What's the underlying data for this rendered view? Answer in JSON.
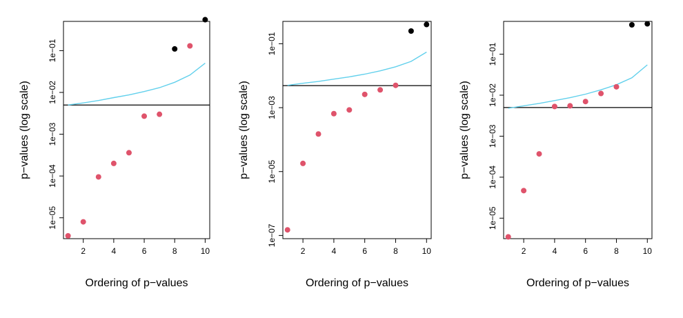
{
  "chart_data": [
    {
      "type": "scatter",
      "title": "",
      "xlabel": "Ordering of p−values",
      "ylabel": "p−values (log scale)",
      "xlim": [
        0.7,
        10.3
      ],
      "ylim_log10": [
        -5.5,
        -0.3
      ],
      "log_y": true,
      "x_ticks": [
        2,
        4,
        6,
        8,
        10
      ],
      "y_ticks": [
        {
          "value": 1e-05,
          "label": "1e−05"
        },
        {
          "value": 0.0001,
          "label": "1e−04"
        },
        {
          "value": 0.001,
          "label": "1e−03"
        },
        {
          "value": 0.01,
          "label": "1e−02"
        },
        {
          "value": 0.1,
          "label": "1e−01"
        }
      ],
      "points": {
        "x": [
          1,
          2,
          3,
          4,
          5,
          6,
          7,
          8,
          9,
          10
        ],
        "y": [
          3.7e-06,
          8e-06,
          9.5e-05,
          0.0002,
          0.00036,
          0.0027,
          0.003,
          0.11,
          0.13,
          0.55
        ],
        "rejected": [
          true,
          true,
          true,
          true,
          true,
          true,
          true,
          false,
          true,
          false
        ]
      },
      "threshold_line": {
        "type": "horizontal",
        "y": 0.005
      },
      "bh_line": {
        "x": [
          1,
          2,
          3,
          4,
          5,
          6,
          7,
          8,
          9,
          10
        ],
        "y": [
          0.005,
          0.0056,
          0.0064,
          0.0075,
          0.0087,
          0.0105,
          0.013,
          0.0175,
          0.026,
          0.05
        ]
      },
      "colors": {
        "rejected": "#df536b",
        "not_rejected": "#000000",
        "bh_line": "#61d0ec",
        "threshold": "#000000"
      }
    },
    {
      "type": "scatter",
      "title": "",
      "xlabel": "Ordering of p−values",
      "ylabel": "p−values (log scale)",
      "xlim": [
        0.7,
        10.3
      ],
      "ylim_log10": [
        -7.1,
        -0.3
      ],
      "log_y": true,
      "x_ticks": [
        2,
        4,
        6,
        8,
        10
      ],
      "y_ticks": [
        {
          "value": 1e-07,
          "label": "1e−07"
        },
        {
          "value": 1e-05,
          "label": "1e−05"
        },
        {
          "value": 0.001,
          "label": "1e−03"
        },
        {
          "value": 0.1,
          "label": "1e−01"
        }
      ],
      "points": {
        "x": [
          1,
          2,
          3,
          4,
          5,
          6,
          7,
          8,
          9,
          10
        ],
        "y": [
          1.5e-07,
          1.8e-05,
          0.00015,
          0.00065,
          0.00085,
          0.0026,
          0.0036,
          0.005,
          0.25,
          0.4
        ],
        "rejected": [
          true,
          true,
          true,
          true,
          true,
          true,
          true,
          true,
          false,
          false
        ]
      },
      "threshold_line": {
        "type": "horizontal",
        "y": 0.0049
      },
      "bh_line": {
        "x": [
          1,
          2,
          3,
          4,
          5,
          6,
          7,
          8,
          9,
          10
        ],
        "y": [
          0.005,
          0.0058,
          0.0066,
          0.0078,
          0.0092,
          0.0112,
          0.0142,
          0.019,
          0.028,
          0.055
        ]
      },
      "colors": {
        "rejected": "#df536b",
        "not_rejected": "#000000",
        "bh_line": "#61d0ec",
        "threshold": "#000000"
      }
    },
    {
      "type": "scatter",
      "title": "",
      "xlabel": "Ordering of p−values",
      "ylabel": "p−values (log scale)",
      "xlim": [
        0.7,
        10.3
      ],
      "ylim_log10": [
        -5.5,
        -0.2
      ],
      "log_y": true,
      "x_ticks": [
        2,
        4,
        6,
        8,
        10
      ],
      "y_ticks": [
        {
          "value": 1e-05,
          "label": "1e−05"
        },
        {
          "value": 0.0001,
          "label": "1e−04"
        },
        {
          "value": 0.001,
          "label": "1e−03"
        },
        {
          "value": 0.01,
          "label": "1e−02"
        },
        {
          "value": 0.1,
          "label": "1e−01"
        }
      ],
      "points": {
        "x": [
          1,
          2,
          3,
          4,
          5,
          6,
          7,
          8,
          9,
          10
        ],
        "y": [
          3.5e-06,
          4.7e-05,
          0.00037,
          0.0053,
          0.0055,
          0.007,
          0.011,
          0.016,
          0.52,
          0.55
        ],
        "rejected": [
          true,
          true,
          true,
          true,
          true,
          true,
          true,
          true,
          false,
          false
        ]
      },
      "threshold_line": {
        "type": "horizontal",
        "y": 0.005
      },
      "bh_line": {
        "x": [
          1,
          2,
          3,
          4,
          5,
          6,
          7,
          8,
          9,
          10
        ],
        "y": [
          0.0048,
          0.0055,
          0.0063,
          0.0074,
          0.0087,
          0.0106,
          0.0135,
          0.018,
          0.0265,
          0.055
        ]
      },
      "colors": {
        "rejected": "#df536b",
        "not_rejected": "#000000",
        "bh_line": "#61d0ec",
        "threshold": "#000000"
      }
    }
  ]
}
